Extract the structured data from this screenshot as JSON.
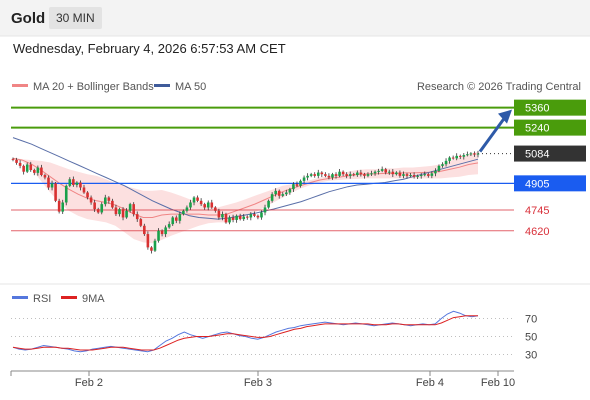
{
  "header": {
    "symbol": "Gold",
    "timeframe": "30 MIN",
    "datetime": "Wednesday, February 4, 2026 6:57:53 AM CET"
  },
  "legend": {
    "ma20": "MA 20 + Bollinger Bands",
    "ma50": "MA 50",
    "rsi": "RSI",
    "rsi_ma": "9MA",
    "credit": "Research © 2026 Trading Central"
  },
  "colors": {
    "resistance": "#4a9c0c",
    "support": "#1a5cf0",
    "red_level": "#d9303a",
    "pivot": "#333333",
    "bollinger_fill": "#fce0e0",
    "ma20": "#f08585",
    "ma50": "#5a6fa8",
    "candle_up": "#1aa04a",
    "candle_down": "#d83030",
    "rsi_line": "#5577dd",
    "rsi_ma": "#dd2222",
    "arrow": "#2e5aa8"
  },
  "chart_data": [
    {
      "type": "candlestick",
      "title": "Gold",
      "timeframe": "30 MIN",
      "ylim": [
        4300,
        5430
      ],
      "x_ticks": [
        "Feb 2",
        "Feb 3",
        "Feb 4",
        "Feb 10"
      ],
      "levels": [
        {
          "value": 5360,
          "label": "5360",
          "kind": "resistance"
        },
        {
          "value": 5240,
          "label": "5240",
          "kind": "resistance"
        },
        {
          "value": 5084,
          "label": "5084",
          "kind": "last"
        },
        {
          "value": 4905,
          "label": "4905",
          "kind": "pivot"
        },
        {
          "value": 4745,
          "label": "4745",
          "kind": "support"
        },
        {
          "value": 4620,
          "label": "4620",
          "kind": "support"
        }
      ],
      "close": [
        5046,
        5028,
        5010,
        4975,
        5018,
        4985,
        4968,
        5000,
        4955,
        4940,
        4880,
        4905,
        4800,
        4735,
        4790,
        4890,
        4930,
        4895,
        4910,
        4880,
        4850,
        4820,
        4790,
        4750,
        4730,
        4780,
        4820,
        4800,
        4760,
        4720,
        4750,
        4700,
        4740,
        4780,
        4720,
        4690,
        4650,
        4600,
        4520,
        4500,
        4560,
        4620,
        4600,
        4640,
        4660,
        4700,
        4680,
        4720,
        4740,
        4760,
        4790,
        4820,
        4800,
        4780,
        4760,
        4790,
        4760,
        4740,
        4700,
        4720,
        4670,
        4700,
        4685,
        4710,
        4690,
        4705,
        4700,
        4720,
        4710,
        4700,
        4730,
        4760,
        4800,
        4840,
        4860,
        4830,
        4840,
        4850,
        4870,
        4900,
        4890,
        4920,
        4940,
        4950,
        4960,
        4950,
        4970,
        4960,
        4950,
        4940,
        4960,
        4950,
        4975,
        4960,
        4950,
        4960,
        4955,
        4970,
        4960,
        4950,
        4960,
        4965,
        4975,
        4980,
        4990,
        4970,
        4975,
        4960,
        4970,
        4950,
        4960,
        4950,
        4955,
        4945,
        4950,
        4955,
        4960,
        4950,
        4965,
        4980,
        5010,
        5020,
        5040,
        5060,
        5055,
        5070,
        5065,
        5075,
        5080,
        5085,
        5078,
        5084
      ],
      "ma50": [
        5180,
        5160,
        5140,
        5115,
        5090,
        5065,
        5040,
        5015,
        4990,
        4965,
        4940,
        4915,
        4890,
        4860,
        4830,
        4800,
        4775,
        4750,
        4730,
        4710,
        4700,
        4695,
        4690,
        4695,
        4705,
        4715,
        4725,
        4738,
        4750,
        4765,
        4780,
        4795,
        4815,
        4835,
        4855,
        4870,
        4885,
        4895,
        4900,
        4905,
        4910,
        4920,
        4930,
        4945,
        4960,
        4975,
        4990,
        5005,
        5020,
        5035,
        5050
      ],
      "bb_upper": [
        5060,
        5050,
        5045,
        5040,
        5030,
        5010,
        4990,
        4975,
        4960,
        4950,
        4930,
        4905,
        4890,
        4875,
        4860,
        4860,
        4865,
        4850,
        4830,
        4810,
        4790,
        4765,
        4760,
        4775,
        4790,
        4810,
        4830,
        4850,
        4870,
        4890,
        4900,
        4910,
        4925,
        4940,
        4950,
        4960,
        4975,
        4985,
        4990,
        4990,
        4995,
        4995,
        5000,
        5000,
        5005,
        5010,
        5020,
        5040,
        5060,
        5080,
        5095
      ],
      "bb_lower": [
        5050,
        5035,
        4990,
        4920,
        4850,
        4790,
        4740,
        4710,
        4690,
        4680,
        4670,
        4650,
        4610,
        4570,
        4550,
        4545,
        4565,
        4590,
        4610,
        4630,
        4650,
        4665,
        4670,
        4670,
        4690,
        4710,
        4730,
        4760,
        4790,
        4820,
        4850,
        4875,
        4895,
        4910,
        4920,
        4925,
        4930,
        4932,
        4935,
        4935,
        4935,
        4935,
        4935,
        4935,
        4935,
        4935,
        4935,
        4940,
        4945,
        4955,
        4960
      ],
      "ma20": [
        5055,
        5045,
        5020,
        4985,
        4945,
        4905,
        4870,
        4840,
        4815,
        4800,
        4790,
        4775,
        4750,
        4720,
        4700,
        4700,
        4715,
        4720,
        4720,
        4720,
        4720,
        4715,
        4715,
        4720,
        4740,
        4760,
        4780,
        4805,
        4830,
        4855,
        4875,
        4892,
        4910,
        4925,
        4935,
        4942,
        4950,
        4958,
        4962,
        4962,
        4965,
        4965,
        4968,
        4968,
        4970,
        4972,
        4978,
        4990,
        5002,
        5018,
        5028
      ]
    },
    {
      "type": "line",
      "title": "RSI",
      "ylim": [
        15,
        85
      ],
      "y_ticks": [
        30,
        50,
        70
      ],
      "series": [
        {
          "name": "RSI",
          "values": [
            38,
            36,
            35,
            36,
            38,
            40,
            39,
            38,
            37,
            36,
            34,
            33,
            34,
            36,
            37,
            38,
            39,
            38,
            37,
            36,
            35,
            34,
            33,
            35,
            40,
            45,
            48,
            52,
            55,
            52,
            50,
            48,
            50,
            52,
            54,
            55,
            53,
            51,
            50,
            48,
            47,
            49,
            52,
            55,
            57,
            59,
            60,
            62,
            63,
            64,
            65,
            66,
            65,
            64,
            63,
            64,
            65,
            64,
            63,
            62,
            63,
            64,
            65,
            64,
            63,
            62,
            63,
            64,
            63,
            64,
            70,
            75,
            78,
            76,
            73,
            72,
            73
          ]
        },
        {
          "name": "9MA",
          "values": [
            38,
            37,
            36,
            36,
            37,
            38,
            38,
            38,
            37,
            37,
            36,
            35,
            35,
            35,
            36,
            37,
            38,
            38,
            38,
            37,
            36,
            35,
            35,
            35,
            37,
            40,
            43,
            46,
            48,
            49,
            50,
            50,
            50,
            51,
            52,
            53,
            53,
            52,
            51,
            50,
            49,
            49,
            50,
            52,
            54,
            56,
            58,
            59,
            61,
            62,
            63,
            64,
            64,
            64,
            64,
            64,
            64,
            64,
            64,
            63,
            63,
            63,
            64,
            64,
            63,
            63,
            63,
            63,
            63,
            63,
            65,
            68,
            71,
            72,
            73,
            73,
            73
          ]
        }
      ]
    }
  ]
}
